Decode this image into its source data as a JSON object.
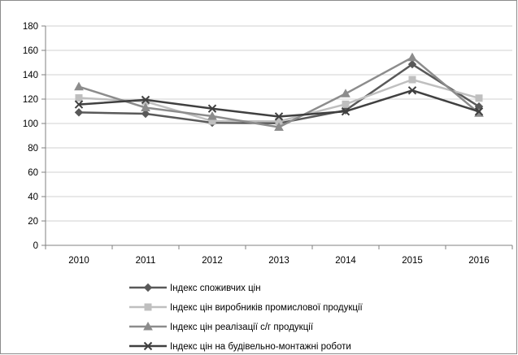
{
  "chart_data": {
    "type": "line",
    "title": "",
    "xlabel": "",
    "ylabel": "",
    "categories": [
      "2010",
      "2011",
      "2012",
      "2013",
      "2014",
      "2015",
      "2016"
    ],
    "ylim": [
      0,
      180
    ],
    "yticks": [
      0,
      20,
      40,
      60,
      80,
      100,
      120,
      140,
      160,
      180
    ],
    "grid": "horizontal",
    "legend_position": "bottom",
    "series": [
      {
        "name": "Індекс споживчих цін",
        "values": [
          109.1,
          108.0,
          100.6,
          100.2,
          110.8,
          148.6,
          113.9
        ],
        "color": "#595959",
        "marker": "diamond"
      },
      {
        "name": "Індекс цін виробників промислової продукції",
        "values": [
          121.0,
          118.0,
          102.0,
          101.7,
          115.8,
          136.0,
          120.8
        ],
        "color": "#bfbfbf",
        "marker": "square"
      },
      {
        "name": "Індекс цін реалізації с/г продукції",
        "values": [
          130.2,
          113.0,
          106.0,
          97.0,
          124.5,
          154.2,
          108.5
        ],
        "color": "#8c8c8c",
        "marker": "triangle"
      },
      {
        "name": "Індекс цін на будівельно-монтажні роботи",
        "values": [
          115.6,
          119.4,
          112.2,
          105.7,
          109.9,
          127.1,
          109.8
        ],
        "color": "#404040",
        "marker": "x"
      }
    ]
  }
}
